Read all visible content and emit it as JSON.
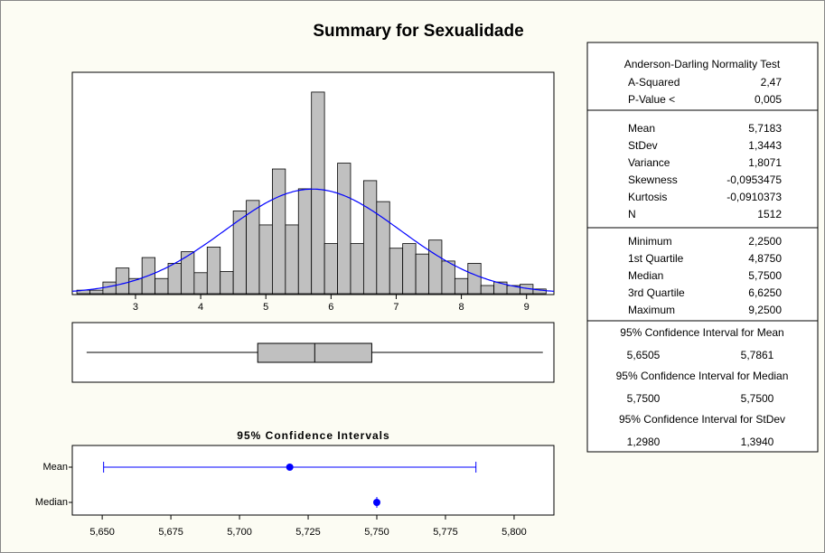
{
  "title": "Summary for Sexualidade",
  "chart_data": [
    {
      "type": "histogram",
      "bins": [
        2.1,
        2.3,
        2.5,
        2.7,
        2.9,
        3.1,
        3.3,
        3.5,
        3.7,
        3.9,
        4.1,
        4.3,
        4.5,
        4.7,
        4.9,
        5.1,
        5.3,
        5.5,
        5.7,
        5.9,
        6.1,
        6.3,
        6.5,
        6.7,
        6.9,
        7.1,
        7.3,
        7.5,
        7.7,
        7.9,
        8.1,
        8.3,
        8.5,
        8.7,
        8.9,
        9.1,
        9.3
      ],
      "values": [
        3,
        3,
        10,
        22,
        13,
        31,
        13,
        26,
        36,
        18,
        40,
        19,
        71,
        80,
        59,
        107,
        59,
        90,
        173,
        43,
        112,
        43,
        97,
        79,
        39,
        43,
        34,
        46,
        28,
        13,
        26,
        7,
        10,
        7,
        8,
        4
      ],
      "color": "#c0c0c0",
      "curve_color": "#0000ff",
      "xlim": [
        2.03,
        9.42
      ],
      "xticks": [
        3,
        4,
        5,
        6,
        7,
        8,
        9
      ],
      "ylim": [
        0,
        190
      ]
    },
    {
      "type": "boxplot",
      "color": "#c0c0c0"
    },
    {
      "type": "interval",
      "title": "95% Confidence Intervals",
      "categories": [
        "Mean",
        "Median"
      ],
      "color": "#0000ff",
      "xlim": [
        5.6391,
        5.8145
      ],
      "xticks": [
        {
          "value": 5.65,
          "label": "5,650"
        },
        {
          "value": 5.675,
          "label": "5,675"
        },
        {
          "value": 5.7,
          "label": "5,700"
        },
        {
          "value": 5.725,
          "label": "5,725"
        },
        {
          "value": 5.75,
          "label": "5,750"
        },
        {
          "value": 5.775,
          "label": "5,775"
        },
        {
          "value": 5.8,
          "label": "5,800"
        }
      ]
    }
  ],
  "stats": {
    "normality": {
      "title": "Anderson-Darling Normality Test",
      "rows": [
        {
          "name": "A-Squared",
          "value": 2.47,
          "label": "2,47"
        },
        {
          "name": "P-Value <",
          "value": 0.005,
          "label": "0,005"
        }
      ]
    },
    "moments": {
      "rows": [
        {
          "name": "Mean",
          "value": 5.7183,
          "label": "5,7183"
        },
        {
          "name": "StDev",
          "value": 1.3443,
          "label": "1,3443"
        },
        {
          "name": "Variance",
          "value": 1.8071,
          "label": "1,8071"
        },
        {
          "name": "Skewness",
          "value": -0.0953475,
          "label": "-0,0953475"
        },
        {
          "name": "Kurtosis",
          "value": -0.0910373,
          "label": "-0,0910373"
        },
        {
          "name": "N",
          "value": 1512,
          "label": "1512"
        }
      ]
    },
    "quartiles": {
      "rows": [
        {
          "name": "Minimum",
          "value": 2.25,
          "label": "2,2500"
        },
        {
          "name": "1st Quartile",
          "value": 4.875,
          "label": "4,8750"
        },
        {
          "name": "Median",
          "value": 5.75,
          "label": "5,7500"
        },
        {
          "name": "3rd Quartile",
          "value": 6.625,
          "label": "6,6250"
        },
        {
          "name": "Maximum",
          "value": 9.25,
          "label": "9,2500"
        }
      ]
    },
    "intervals": [
      {
        "title": "95% Confidence Interval for Mean",
        "values": [
          5.6505,
          5.7861
        ],
        "value_labels": [
          "5,6505",
          "5,7861"
        ]
      },
      {
        "title": "95% Confidence Interval for Median",
        "values": [
          5.75,
          5.75
        ],
        "value_labels": [
          "5,7500",
          "5,7500"
        ]
      },
      {
        "title": "95% Confidence Interval for StDev",
        "values": [
          1.298,
          1.394
        ],
        "value_labels": [
          "1,2980",
          "1,3940"
        ]
      }
    ]
  }
}
